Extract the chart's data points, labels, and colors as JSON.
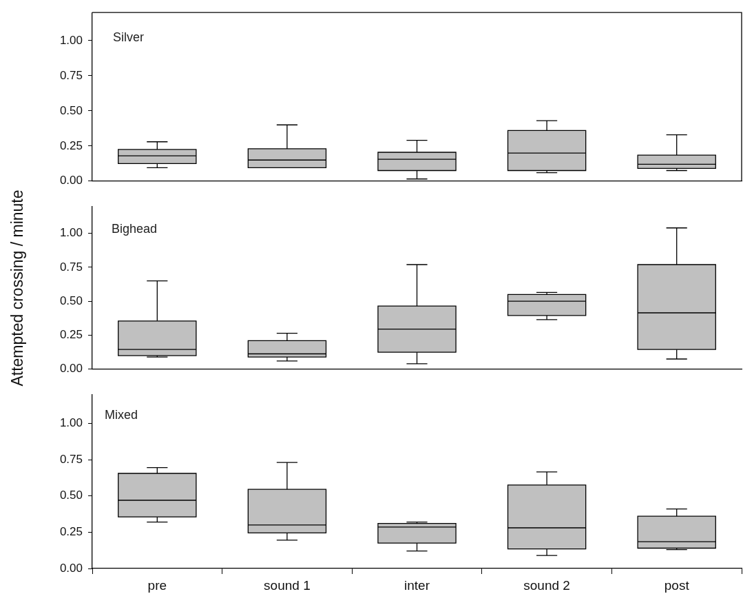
{
  "chart_data": [
    {
      "type": "box",
      "annotations": [
        "Silver"
      ],
      "color": "#c0c0c0",
      "tick_labels": "y",
      "grid": false,
      "ylim": [
        0,
        1.2
      ],
      "yticks": [
        {
          "value": 0,
          "label": "0.00"
        },
        {
          "value": 0.25,
          "label": "0.25"
        },
        {
          "value": 0.5,
          "label": "0.50"
        },
        {
          "value": 0.75,
          "label": "0.75"
        },
        {
          "value": 1,
          "label": "1.00"
        }
      ],
      "boxes": [
        {
          "low": 0.095,
          "q1": 0.125,
          "median": 0.18,
          "q3": 0.225,
          "high": 0.28
        },
        {
          "low": 0.095,
          "q1": 0.095,
          "median": 0.15,
          "q3": 0.23,
          "high": 0.4
        },
        {
          "low": 0.015,
          "q1": 0.075,
          "median": 0.155,
          "q3": 0.205,
          "high": 0.29
        },
        {
          "low": 0.06,
          "q1": 0.075,
          "median": 0.2,
          "q3": 0.36,
          "high": 0.43
        },
        {
          "low": 0.075,
          "q1": 0.09,
          "median": 0.12,
          "q3": 0.185,
          "high": 0.33
        }
      ]
    },
    {
      "type": "box",
      "annotations": [
        "Bighead"
      ],
      "ylabel": "Attempted crossing / minute",
      "color": "#c0c0c0",
      "tick_labels": "y",
      "grid": false,
      "ylim": [
        0,
        1.2
      ],
      "yticks": [
        {
          "value": 0,
          "label": "0.00"
        },
        {
          "value": 0.25,
          "label": "0.25"
        },
        {
          "value": 0.5,
          "label": "0.50"
        },
        {
          "value": 0.75,
          "label": "0.75"
        },
        {
          "value": 1,
          "label": "1.00"
        }
      ],
      "boxes": [
        {
          "low": 0.09,
          "q1": 0.1,
          "median": 0.145,
          "q3": 0.355,
          "high": 0.65
        },
        {
          "low": 0.06,
          "q1": 0.09,
          "median": 0.113,
          "q3": 0.21,
          "high": 0.265
        },
        {
          "low": 0.04,
          "q1": 0.125,
          "median": 0.295,
          "q3": 0.465,
          "high": 0.77
        },
        {
          "low": 0.365,
          "q1": 0.395,
          "median": 0.5,
          "q3": 0.55,
          "high": 0.565
        },
        {
          "low": 0.075,
          "q1": 0.145,
          "median": 0.415,
          "q3": 0.77,
          "high": 1.04
        }
      ]
    },
    {
      "type": "box",
      "annotations": [
        "Mixed"
      ],
      "categories": [
        "pre",
        "sound 1",
        "inter",
        "sound 2",
        "post"
      ],
      "color": "#c0c0c0",
      "grid": false,
      "ylim": [
        0,
        1.2
      ],
      "yticks": [
        {
          "value": 0,
          "label": "0.00"
        },
        {
          "value": 0.25,
          "label": "0.25"
        },
        {
          "value": 0.5,
          "label": "0.50"
        },
        {
          "value": 0.75,
          "label": "0.75"
        },
        {
          "value": 1,
          "label": "1.00"
        }
      ],
      "boxes": [
        {
          "low": 0.32,
          "q1": 0.355,
          "median": 0.47,
          "q3": 0.655,
          "high": 0.695
        },
        {
          "low": 0.195,
          "q1": 0.245,
          "median": 0.3,
          "q3": 0.545,
          "high": 0.73
        },
        {
          "low": 0.12,
          "q1": 0.175,
          "median": 0.285,
          "q3": 0.31,
          "high": 0.32
        },
        {
          "low": 0.09,
          "q1": 0.135,
          "median": 0.28,
          "q3": 0.575,
          "high": 0.665
        },
        {
          "low": 0.13,
          "q1": 0.14,
          "median": 0.185,
          "q3": 0.36,
          "high": 0.41
        }
      ]
    }
  ]
}
